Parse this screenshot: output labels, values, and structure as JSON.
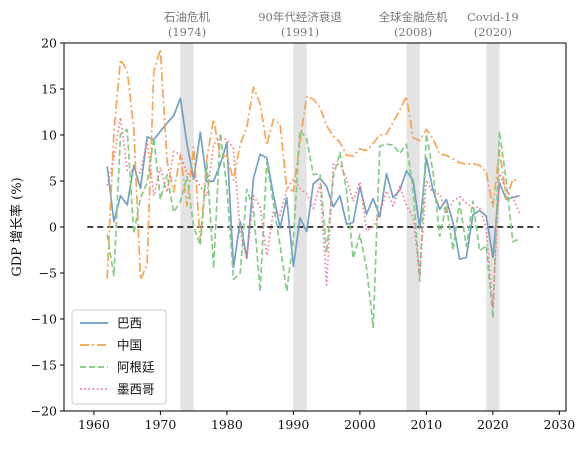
{
  "chart_data": {
    "type": "line",
    "title": "",
    "xlabel": "",
    "ylabel": "GDP 增长率 (%)",
    "xlim": [
      1955.5,
      2031
    ],
    "ylim": [
      -20,
      20
    ],
    "xticks": [
      1960,
      1970,
      1980,
      1990,
      2000,
      2010,
      2020,
      2030
    ],
    "yticks": [
      -20,
      -15,
      -10,
      -5,
      0,
      5,
      10,
      15,
      20
    ],
    "grid": false,
    "legend_position": "lower-left",
    "reference_line": {
      "y": 0,
      "x_from": 1959,
      "x_to": 2027,
      "style": "dashed",
      "color": "#000000"
    },
    "shaded_periods": [
      {
        "from": 1973,
        "to": 1975,
        "label_lines": [
          "石油危机",
          "(1974)"
        ]
      },
      {
        "from": 1990,
        "to": 1992,
        "label_lines": [
          "90年代经济衰退",
          "(1991)"
        ]
      },
      {
        "from": 2007,
        "to": 2009,
        "label_lines": [
          "全球金融危机",
          "(2008)"
        ]
      },
      {
        "from": 2019,
        "to": 2021,
        "label_lines": [
          "Covid-19",
          "(2020)"
        ]
      }
    ],
    "series": [
      {
        "name": "巴西",
        "color": "#6b9bc3",
        "dash": "solid",
        "x": [
          1962,
          1963,
          1964,
          1965,
          1966,
          1967,
          1968,
          1969,
          1970,
          1971,
          1972,
          1973,
          1974,
          1975,
          1976,
          1977,
          1978,
          1979,
          1980,
          1981,
          1982,
          1983,
          1984,
          1985,
          1986,
          1987,
          1988,
          1989,
          1990,
          1991,
          1992,
          1993,
          1994,
          1995,
          1996,
          1997,
          1998,
          1999,
          2000,
          2001,
          2002,
          2003,
          2004,
          2005,
          2006,
          2007,
          2008,
          2009,
          2010,
          2011,
          2012,
          2013,
          2014,
          2015,
          2016,
          2017,
          2018,
          2019,
          2020,
          2021,
          2022,
          2023,
          2024
        ],
        "y": [
          6.6,
          0.6,
          3.4,
          2.4,
          6.7,
          4.2,
          9.8,
          9.5,
          10.4,
          11.3,
          12.1,
          14.0,
          9.0,
          5.2,
          10.3,
          4.9,
          5.0,
          6.8,
          9.2,
          -4.4,
          0.6,
          -3.4,
          5.3,
          7.9,
          7.5,
          3.5,
          -0.1,
          3.2,
          -4.3,
          1.0,
          -0.5,
          4.7,
          5.3,
          4.4,
          2.2,
          3.4,
          0.3,
          0.5,
          4.4,
          1.4,
          3.1,
          1.1,
          5.8,
          3.2,
          4.0,
          6.1,
          5.1,
          -0.1,
          7.5,
          4.0,
          1.9,
          3.0,
          0.5,
          -3.5,
          -3.3,
          1.3,
          1.8,
          1.2,
          -3.3,
          4.8,
          3.0,
          3.2,
          3.4
        ]
      },
      {
        "name": "中国",
        "color": "#f5a04a",
        "dash": "dashdot",
        "x": [
          1962,
          1963,
          1964,
          1965,
          1966,
          1967,
          1968,
          1969,
          1970,
          1971,
          1972,
          1973,
          1974,
          1975,
          1976,
          1977,
          1978,
          1979,
          1980,
          1981,
          1982,
          1983,
          1984,
          1985,
          1986,
          1987,
          1988,
          1989,
          1990,
          1991,
          1992,
          1993,
          1994,
          1995,
          1996,
          1997,
          1998,
          1999,
          2000,
          2001,
          2002,
          2003,
          2004,
          2005,
          2006,
          2007,
          2008,
          2009,
          2010,
          2011,
          2012,
          2013,
          2014,
          2015,
          2016,
          2017,
          2018,
          2019,
          2020,
          2021,
          2022,
          2023,
          2024
        ],
        "y": [
          -5.6,
          10.3,
          18.2,
          17.0,
          10.7,
          -5.7,
          -4.1,
          16.9,
          19.3,
          7.1,
          3.8,
          7.8,
          2.3,
          8.7,
          -1.6,
          7.6,
          11.7,
          7.6,
          7.8,
          5.1,
          9.0,
          10.8,
          15.2,
          13.4,
          8.9,
          11.7,
          11.2,
          4.2,
          3.9,
          9.3,
          14.2,
          13.9,
          13.0,
          11.0,
          9.9,
          9.2,
          7.8,
          7.7,
          8.5,
          8.3,
          9.1,
          10.0,
          10.1,
          11.4,
          12.7,
          14.2,
          9.7,
          9.4,
          10.6,
          9.6,
          7.9,
          7.8,
          7.4,
          7.0,
          6.8,
          6.9,
          6.7,
          6.0,
          2.2,
          8.4,
          3.0,
          5.2,
          5.0
        ]
      },
      {
        "name": "阿根廷",
        "color": "#7fc97f",
        "dash": "dashed",
        "x": [
          1962,
          1963,
          1964,
          1965,
          1966,
          1967,
          1968,
          1969,
          1970,
          1971,
          1972,
          1973,
          1974,
          1975,
          1976,
          1977,
          1978,
          1979,
          1980,
          1981,
          1982,
          1983,
          1984,
          1985,
          1986,
          1987,
          1988,
          1989,
          1990,
          1991,
          1992,
          1993,
          1994,
          1995,
          1996,
          1997,
          1998,
          1999,
          2000,
          2001,
          2002,
          2003,
          2004,
          2005,
          2006,
          2007,
          2008,
          2009,
          2010,
          2011,
          2012,
          2013,
          2014,
          2015,
          2016,
          2017,
          2018,
          2019,
          2020,
          2021,
          2022,
          2023,
          2024
        ],
        "y": [
          -0.8,
          -5.3,
          10.1,
          10.6,
          -0.7,
          3.2,
          4.8,
          9.7,
          3.0,
          5.7,
          1.6,
          2.8,
          5.5,
          0.0,
          -2.0,
          6.9,
          -4.5,
          10.2,
          4.2,
          -5.7,
          -5.0,
          4.1,
          2.0,
          -7.0,
          7.1,
          2.5,
          -2.0,
          -7.0,
          -1.3,
          10.5,
          9.6,
          5.7,
          5.8,
          -2.8,
          5.5,
          8.1,
          3.9,
          -3.4,
          -0.8,
          -4.4,
          -10.9,
          8.8,
          9.0,
          8.9,
          8.0,
          9.0,
          4.1,
          -5.9,
          10.1,
          6.0,
          -1.0,
          2.4,
          -2.5,
          2.7,
          -2.1,
          2.8,
          -2.6,
          -2.0,
          -9.9,
          10.4,
          5.0,
          -1.6,
          -1.3
        ]
      },
      {
        "name": "墨西哥",
        "color": "#f7768a",
        "dash": "dotted",
        "x": [
          1962,
          1963,
          1964,
          1965,
          1966,
          1967,
          1968,
          1969,
          1970,
          1971,
          1972,
          1973,
          1974,
          1975,
          1976,
          1977,
          1978,
          1979,
          1980,
          1981,
          1982,
          1983,
          1984,
          1985,
          1986,
          1987,
          1988,
          1989,
          1990,
          1991,
          1992,
          1993,
          1994,
          1995,
          1996,
          1997,
          1998,
          1999,
          2000,
          2001,
          2002,
          2003,
          2004,
          2005,
          2006,
          2007,
          2008,
          2009,
          2010,
          2011,
          2012,
          2013,
          2014,
          2015,
          2016,
          2017,
          2018,
          2019,
          2020,
          2021,
          2022,
          2023,
          2024
        ],
        "y": [
          4.5,
          7.5,
          11.9,
          6.2,
          6.1,
          5.9,
          9.4,
          3.4,
          6.5,
          3.8,
          8.2,
          7.9,
          5.8,
          5.7,
          4.4,
          3.4,
          9.0,
          9.7,
          9.5,
          8.5,
          -0.5,
          -3.5,
          3.4,
          2.2,
          -3.1,
          1.7,
          1.3,
          4.1,
          5.2,
          4.2,
          3.6,
          2.0,
          4.7,
          -6.3,
          6.8,
          6.8,
          5.2,
          2.8,
          4.9,
          -0.4,
          0.0,
          1.4,
          3.9,
          2.3,
          4.5,
          2.3,
          1.1,
          -5.3,
          5.1,
          3.7,
          3.6,
          1.4,
          2.8,
          3.3,
          2.6,
          2.1,
          2.2,
          -0.2,
          -8.7,
          5.8,
          3.9,
          3.2,
          1.5
        ]
      }
    ]
  }
}
